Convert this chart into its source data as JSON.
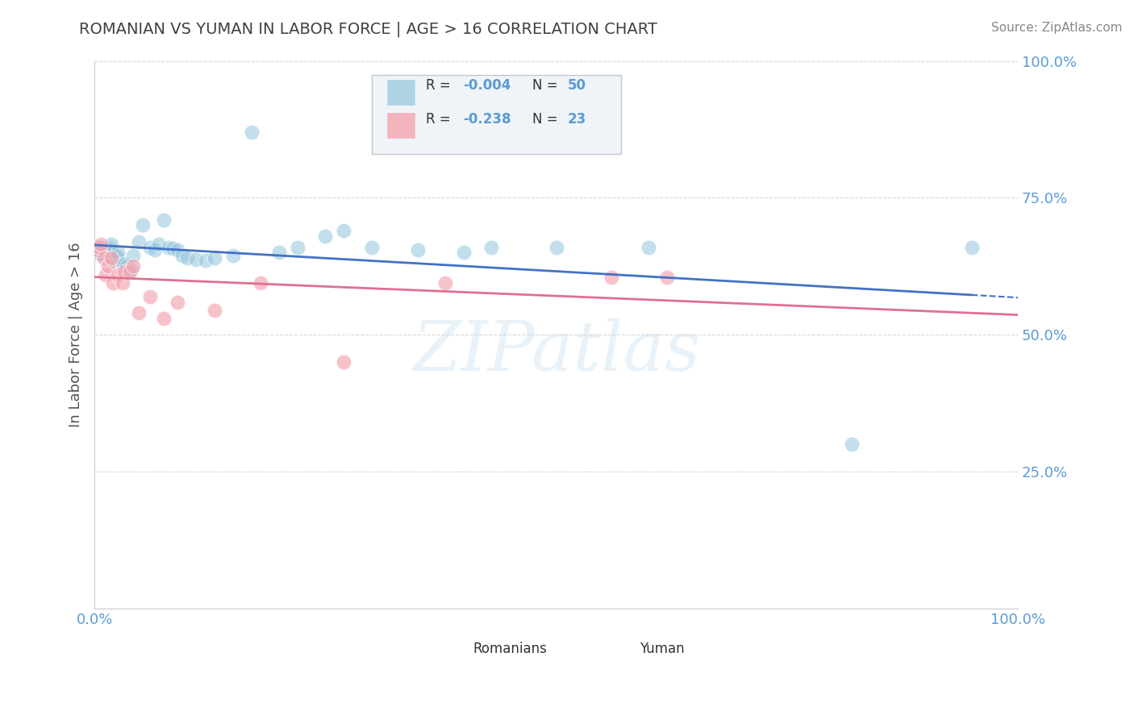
{
  "title": "ROMANIAN VS YUMAN IN LABOR FORCE | AGE > 16 CORRELATION CHART",
  "source": "Source: ZipAtlas.com",
  "ylabel": "In Labor Force | Age > 16",
  "xlim": [
    0.0,
    1.0
  ],
  "ylim": [
    0.0,
    1.0
  ],
  "blue_color": "#92c5de",
  "pink_color": "#f4a4b0",
  "line_blue": "#4472c4",
  "line_pink": "#e07090",
  "title_color": "#404040",
  "axis_label_color": "#555555",
  "tick_color": "#5b9bd5",
  "source_color": "#888888",
  "legend_text_color": "#5b9bd5",
  "watermark_color": "#c8dff0",
  "romanians_x": [
    0.003,
    0.005,
    0.006,
    0.008,
    0.01,
    0.012,
    0.013,
    0.015,
    0.016,
    0.018,
    0.02,
    0.021,
    0.022,
    0.023,
    0.024,
    0.025,
    0.03,
    0.032,
    0.035,
    0.038,
    0.04,
    0.042,
    0.048,
    0.052,
    0.06,
    0.065,
    0.07,
    0.075,
    0.08,
    0.085,
    0.09,
    0.095,
    0.1,
    0.11,
    0.12,
    0.13,
    0.15,
    0.17,
    0.2,
    0.22,
    0.25,
    0.27,
    0.3,
    0.35,
    0.4,
    0.43,
    0.5,
    0.6,
    0.82,
    0.95
  ],
  "romanians_y": [
    0.655,
    0.65,
    0.648,
    0.66,
    0.658,
    0.656,
    0.654,
    0.652,
    0.66,
    0.665,
    0.64,
    0.638,
    0.636,
    0.642,
    0.644,
    0.65,
    0.63,
    0.628,
    0.625,
    0.62,
    0.618,
    0.645,
    0.67,
    0.7,
    0.66,
    0.655,
    0.665,
    0.71,
    0.66,
    0.658,
    0.655,
    0.645,
    0.64,
    0.638,
    0.636,
    0.64,
    0.645,
    0.87,
    0.65,
    0.66,
    0.68,
    0.69,
    0.66,
    0.655,
    0.65,
    0.66,
    0.66,
    0.66,
    0.3,
    0.66
  ],
  "yuman_x": [
    0.003,
    0.005,
    0.007,
    0.01,
    0.012,
    0.015,
    0.018,
    0.02,
    0.025,
    0.03,
    0.032,
    0.038,
    0.042,
    0.048,
    0.06,
    0.075,
    0.09,
    0.13,
    0.18,
    0.27,
    0.38,
    0.56,
    0.62
  ],
  "yuman_y": [
    0.655,
    0.66,
    0.665,
    0.64,
    0.61,
    0.625,
    0.64,
    0.595,
    0.61,
    0.595,
    0.615,
    0.615,
    0.625,
    0.54,
    0.57,
    0.53,
    0.56,
    0.545,
    0.595,
    0.45,
    0.595,
    0.605,
    0.605
  ],
  "watermark": "ZIPatlas",
  "background_color": "#ffffff",
  "grid_color": "#d8d8d8",
  "legend_box_color": "#f0f4f8",
  "legend_border_color": "#c0c8d0"
}
